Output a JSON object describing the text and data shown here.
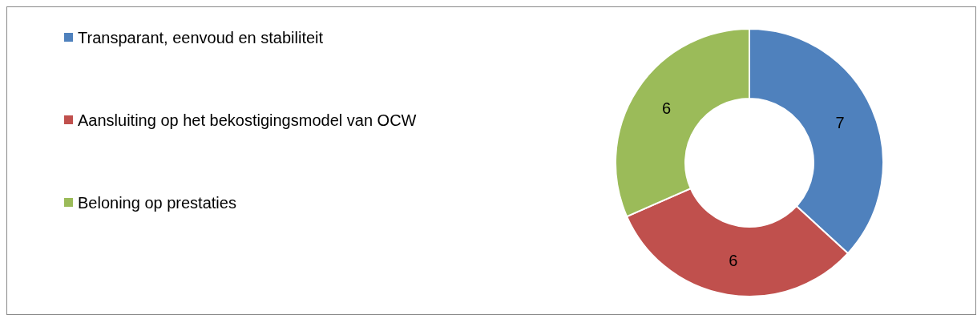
{
  "chart_data": {
    "type": "donut",
    "categories": [
      "Transparant, eenvoud en stabiliteit",
      "Aansluiting op het bekostigingsmodel van OCW",
      "Beloning op prestaties"
    ],
    "values": [
      7,
      6,
      6
    ],
    "colors": [
      "#4f81bd",
      "#c0504d",
      "#9bbb59"
    ],
    "data_labels": true,
    "legend": "top left"
  }
}
